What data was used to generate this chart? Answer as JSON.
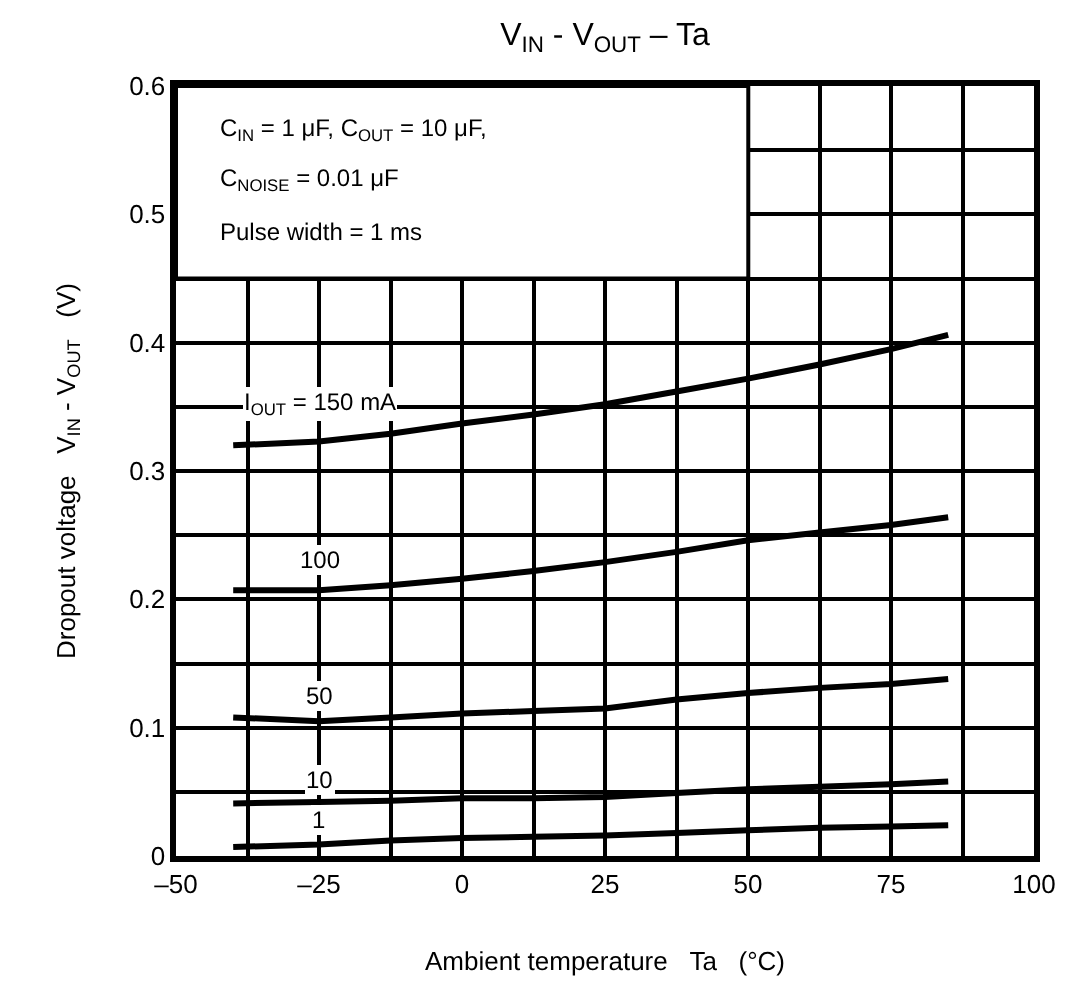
{
  "chart_data": {
    "type": "line",
    "title": "V$_{IN}$ - V$_{OUT}$ – Ta",
    "xlabel": "Ambient temperature   Ta   (°C)",
    "ylabel": "Dropout voltage   V$_{IN}$ - V$_{OUT}$   (V)",
    "annotations": [
      "C$_{IN}$ = 1 μF, C$_{OUT}$ = 10 μF,",
      "C$_{NOISE}$ = 0.01 μF",
      "Pulse width = 1 ms"
    ],
    "x": [
      -40,
      -25,
      -12.5,
      0,
      12.5,
      25,
      37.5,
      50,
      62.5,
      75,
      85
    ],
    "series": [
      {
        "name": "I$_{OUT}$ = 150 mA",
        "color": "#000000",
        "values": [
          0.32,
          0.323,
          0.329,
          0.337,
          0.344,
          0.352,
          0.362,
          0.372,
          0.383,
          0.395,
          0.406
        ]
      },
      {
        "name": "100",
        "color": "#000000",
        "values": [
          0.207,
          0.207,
          0.211,
          0.216,
          0.222,
          0.229,
          0.237,
          0.246,
          0.252,
          0.258,
          0.264
        ]
      },
      {
        "name": "50",
        "color": "#000000",
        "values": [
          0.108,
          0.105,
          0.108,
          0.111,
          0.113,
          0.115,
          0.122,
          0.127,
          0.131,
          0.134,
          0.138
        ]
      },
      {
        "name": "10",
        "color": "#000000",
        "values": [
          0.041,
          0.042,
          0.043,
          0.045,
          0.045,
          0.046,
          0.049,
          0.052,
          0.054,
          0.056,
          0.058
        ]
      },
      {
        "name": "1",
        "color": "#000000",
        "values": [
          0.007,
          0.009,
          0.012,
          0.014,
          0.015,
          0.016,
          0.018,
          0.02,
          0.022,
          0.023,
          0.024
        ]
      }
    ],
    "xlim": [
      -50,
      100
    ],
    "ylim": [
      0,
      0.6
    ],
    "xticks": [
      {
        "value": -50,
        "label": "–50"
      },
      {
        "value": -37.5,
        "label": null
      },
      {
        "value": -25,
        "label": "–25"
      },
      {
        "value": -12.5,
        "label": null
      },
      0,
      {
        "value": 12.5,
        "label": null
      },
      25,
      {
        "value": 37.5,
        "label": null
      },
      50,
      {
        "value": 62.5,
        "label": null
      },
      75,
      {
        "value": 87.5,
        "label": null
      },
      100
    ],
    "yticks": [
      0,
      {
        "value": 0.05,
        "label": null
      },
      0.1,
      {
        "value": 0.15,
        "label": null
      },
      0.2,
      {
        "value": 0.25,
        "label": null
      },
      0.3,
      {
        "value": 0.35,
        "label": null
      },
      0.4,
      {
        "value": 0.45,
        "label": null
      },
      0.5,
      {
        "value": 0.55,
        "label": null
      },
      0.6
    ],
    "grid": true,
    "legend": false,
    "marker": "none",
    "line_style": "solid"
  }
}
